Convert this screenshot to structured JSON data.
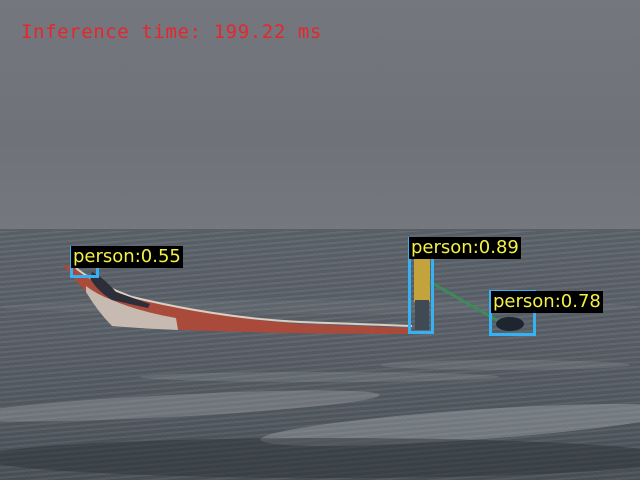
{
  "overlay": {
    "inference_time": "Inference time: 199.22 ms"
  },
  "detections": [
    {
      "label": "person:0.55"
    },
    {
      "label": "person:0.89"
    },
    {
      "label": "person:0.78"
    }
  ],
  "colors": {
    "box": "#35b2f4",
    "label_text": "#f4f046",
    "label_bg": "#000000",
    "inference_text": "#e8252c"
  }
}
